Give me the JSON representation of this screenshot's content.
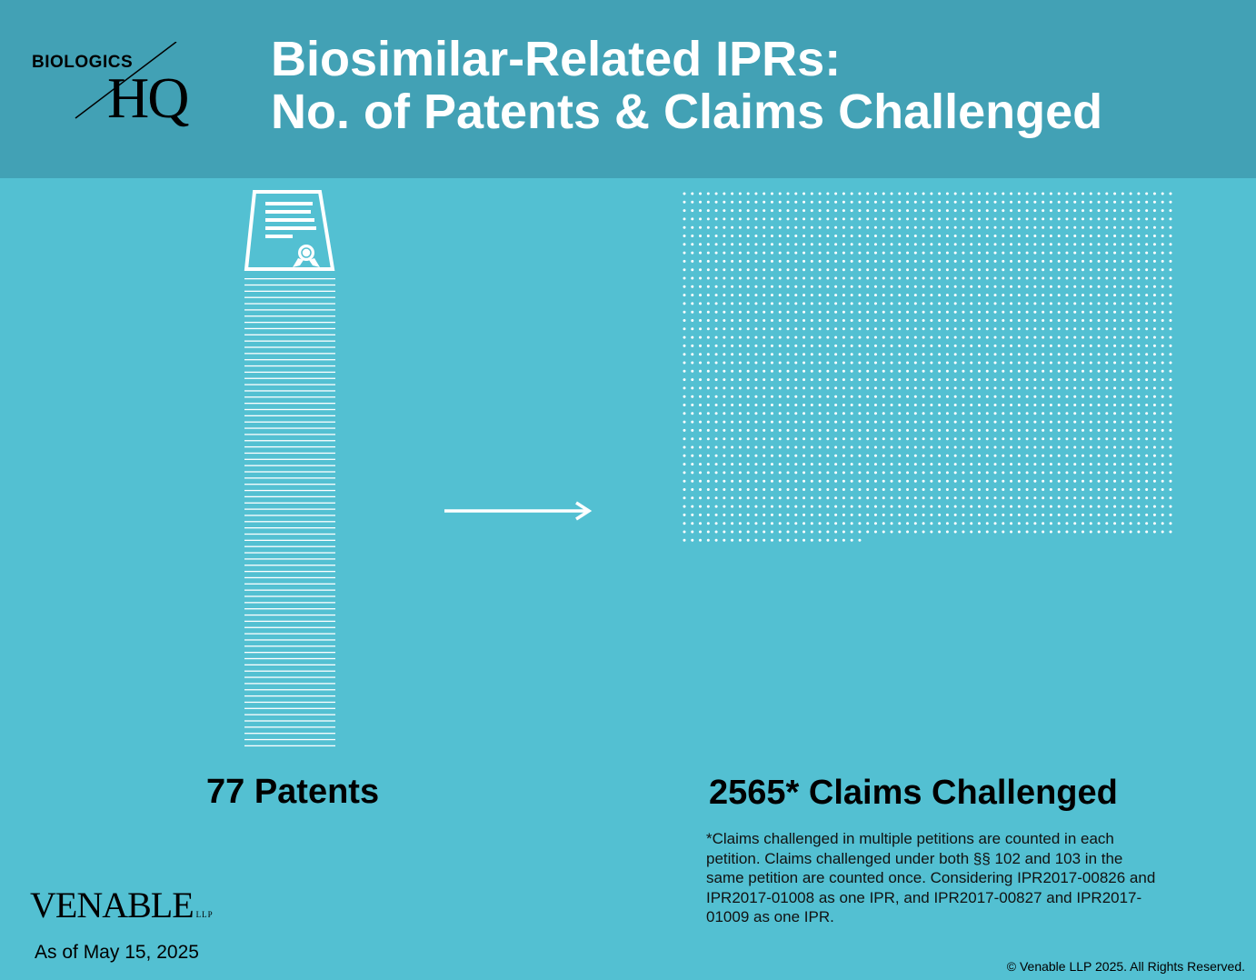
{
  "header": {
    "logo_top": "BIOLOGICS",
    "logo_bottom": "HQ",
    "title_line1": "Biosimilar-Related IPRs:",
    "title_line2": "No. of Patents & Claims Challenged"
  },
  "chart_data": {
    "type": "pictograph",
    "series": [
      {
        "name": "Patents",
        "value": 77,
        "label": "77 Patents"
      },
      {
        "name": "Claims Challenged",
        "value": 2565,
        "label": "2565* Claims Challenged"
      }
    ],
    "footnote": "*Claims challenged in multiple petitions are counted in each petition.  Claims challenged under both  §§ 102 and 103 in the same petition are counted once. Considering IPR2017-00826 and IPR2017-01008 as one IPR, and IPR2017-00827 and IPR2017-01009 as one IPR."
  },
  "footer": {
    "brand": "VENABLE",
    "brand_suffix": "LLP",
    "as_of": "As of May 15, 2025",
    "copyright": "© Venable LLP 2025. All Rights Reserved."
  },
  "colors": {
    "background": "#53c0d2",
    "header": "#42a1b5",
    "marks": "#ffffff"
  },
  "icons": {
    "patent": "patent-certificate-icon",
    "arrow": "right-arrow-icon"
  }
}
